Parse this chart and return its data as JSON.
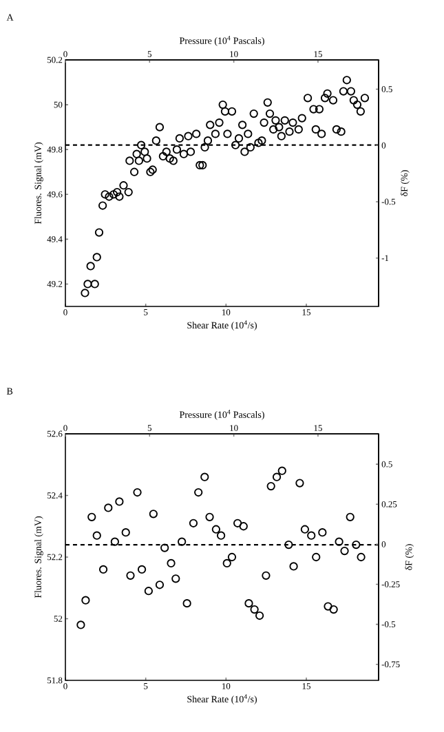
{
  "chart_data": [
    {
      "type": "scatter",
      "title": "A",
      "x2label": "Pressure (10$^{4}$ Pascals)",
      "xlabel": "Shear Rate (10$^{4}$/s)",
      "ylabel": "Fluores. Signal (mV)",
      "y2label": "δF (%)",
      "color": "#000000",
      "marker": "circle",
      "x": [
        1.22,
        1.39,
        1.83,
        1.57,
        1.96,
        2.1,
        2.32,
        2.47,
        2.72,
        3.0,
        3.36,
        3.22,
        3.62,
        3.93,
        4.29,
        4.0,
        4.58,
        4.44,
        4.72,
        5.08,
        4.94,
        5.29,
        5.43,
        5.65,
        5.87,
        6.08,
        6.29,
        6.5,
        6.72,
        6.94,
        7.11,
        7.37,
        7.8,
        7.65,
        8.15,
        8.37,
        8.54,
        8.68,
        8.87,
        9.01,
        9.34,
        9.58,
        9.8,
        9.94,
        10.37,
        10.09,
        10.59,
        10.8,
        11.02,
        11.16,
        11.37,
        11.52,
        11.73,
        12.02,
        12.23,
        12.37,
        12.59,
        12.73,
        12.95,
        13.09,
        13.3,
        13.45,
        13.66,
        13.95,
        14.16,
        14.52,
        14.73,
        15.09,
        15.45,
        15.59,
        15.95,
        15.81,
        16.16,
        16.31,
        16.67,
        16.88,
        17.17,
        17.31,
        17.52,
        17.78,
        17.95,
        18.17,
        18.38,
        18.64
      ],
      "values": [
        49.16,
        49.2,
        49.2,
        49.28,
        49.32,
        49.43,
        49.55,
        49.6,
        49.59,
        49.6,
        49.59,
        49.61,
        49.64,
        49.61,
        49.7,
        49.75,
        49.75,
        49.78,
        49.82,
        49.76,
        49.79,
        49.7,
        49.71,
        49.84,
        49.9,
        49.77,
        49.79,
        49.76,
        49.75,
        49.8,
        49.85,
        49.78,
        49.79,
        49.86,
        49.87,
        49.73,
        49.73,
        49.81,
        49.84,
        49.91,
        49.87,
        49.92,
        50.0,
        49.97,
        49.97,
        49.87,
        49.82,
        49.85,
        49.91,
        49.79,
        49.87,
        49.81,
        49.96,
        49.83,
        49.84,
        49.92,
        50.01,
        49.96,
        49.89,
        49.93,
        49.9,
        49.86,
        49.93,
        49.88,
        49.92,
        49.89,
        49.94,
        50.03,
        49.98,
        49.89,
        49.87,
        49.98,
        50.03,
        50.05,
        50.02,
        49.89,
        49.88,
        50.06,
        50.11,
        50.06,
        50.02,
        50.0,
        49.97,
        50.03
      ],
      "xlim": [
        0,
        19.5
      ],
      "xticks": [
        0,
        5,
        10,
        15
      ],
      "x2lim": [
        0,
        18.6
      ],
      "x2ticks": [
        0,
        5,
        10,
        15
      ],
      "ylim": [
        49.1,
        50.2
      ],
      "yticks": [
        49.2,
        49.4,
        49.6,
        49.8,
        50,
        50.2
      ],
      "y2lim": [
        -1.43,
        0.76
      ],
      "y2ticks": [
        -1,
        -0.5,
        0,
        0.5
      ],
      "ref_lines": [
        {
          "axis": "y",
          "value": 49.82,
          "line_style": "dashed",
          "color": "#000000"
        }
      ]
    },
    {
      "type": "scatter",
      "title": "B",
      "x2label": "Pressure (10$^{4}$ Pascals)",
      "xlabel": "Shear Rate (10$^{4}$/s)",
      "ylabel": "Fluores. Signal (mV)",
      "y2label": "δF (%)",
      "color": "#000000",
      "marker": "circle",
      "x": [
        0.96,
        1.26,
        1.64,
        1.96,
        2.36,
        2.67,
        3.08,
        3.36,
        3.76,
        4.05,
        4.48,
        4.76,
        5.18,
        5.48,
        5.87,
        6.18,
        6.58,
        6.87,
        7.25,
        7.57,
        7.97,
        8.28,
        8.67,
        8.98,
        9.38,
        9.69,
        10.06,
        10.37,
        10.72,
        11.09,
        11.42,
        11.77,
        12.09,
        12.49,
        12.8,
        13.16,
        13.49,
        13.9,
        14.21,
        14.59,
        14.91,
        15.31,
        15.61,
        16.0,
        16.35,
        16.7,
        17.04,
        17.38,
        17.73,
        18.1,
        18.41
      ],
      "values": [
        51.98,
        52.06,
        52.33,
        52.27,
        52.16,
        52.36,
        52.25,
        52.38,
        52.28,
        52.14,
        52.41,
        52.16,
        52.09,
        52.34,
        52.11,
        52.23,
        52.18,
        52.13,
        52.25,
        52.05,
        52.31,
        52.41,
        52.46,
        52.33,
        52.29,
        52.27,
        52.18,
        52.2,
        52.31,
        52.3,
        52.05,
        52.03,
        52.01,
        52.14,
        52.43,
        52.46,
        52.48,
        52.24,
        52.17,
        52.44,
        52.29,
        52.27,
        52.2,
        52.28,
        52.04,
        52.03,
        52.25,
        52.22,
        52.33,
        52.24,
        52.2
      ],
      "xlim": [
        0,
        19.5
      ],
      "xticks": [
        0,
        5,
        10,
        15
      ],
      "x2lim": [
        0,
        18.6
      ],
      "x2ticks": [
        0,
        5,
        10,
        15
      ],
      "ylim": [
        51.8,
        52.6
      ],
      "yticks": [
        51.8,
        52,
        52.2,
        52.4,
        52.6
      ],
      "y2lim": [
        -0.85,
        0.69
      ],
      "y2ticks": [
        -0.75,
        -0.5,
        -0.25,
        0,
        0.25,
        0.5
      ],
      "ref_lines": [
        {
          "axis": "y",
          "value": 52.24,
          "line_style": "dashed",
          "color": "#000000"
        }
      ]
    }
  ]
}
